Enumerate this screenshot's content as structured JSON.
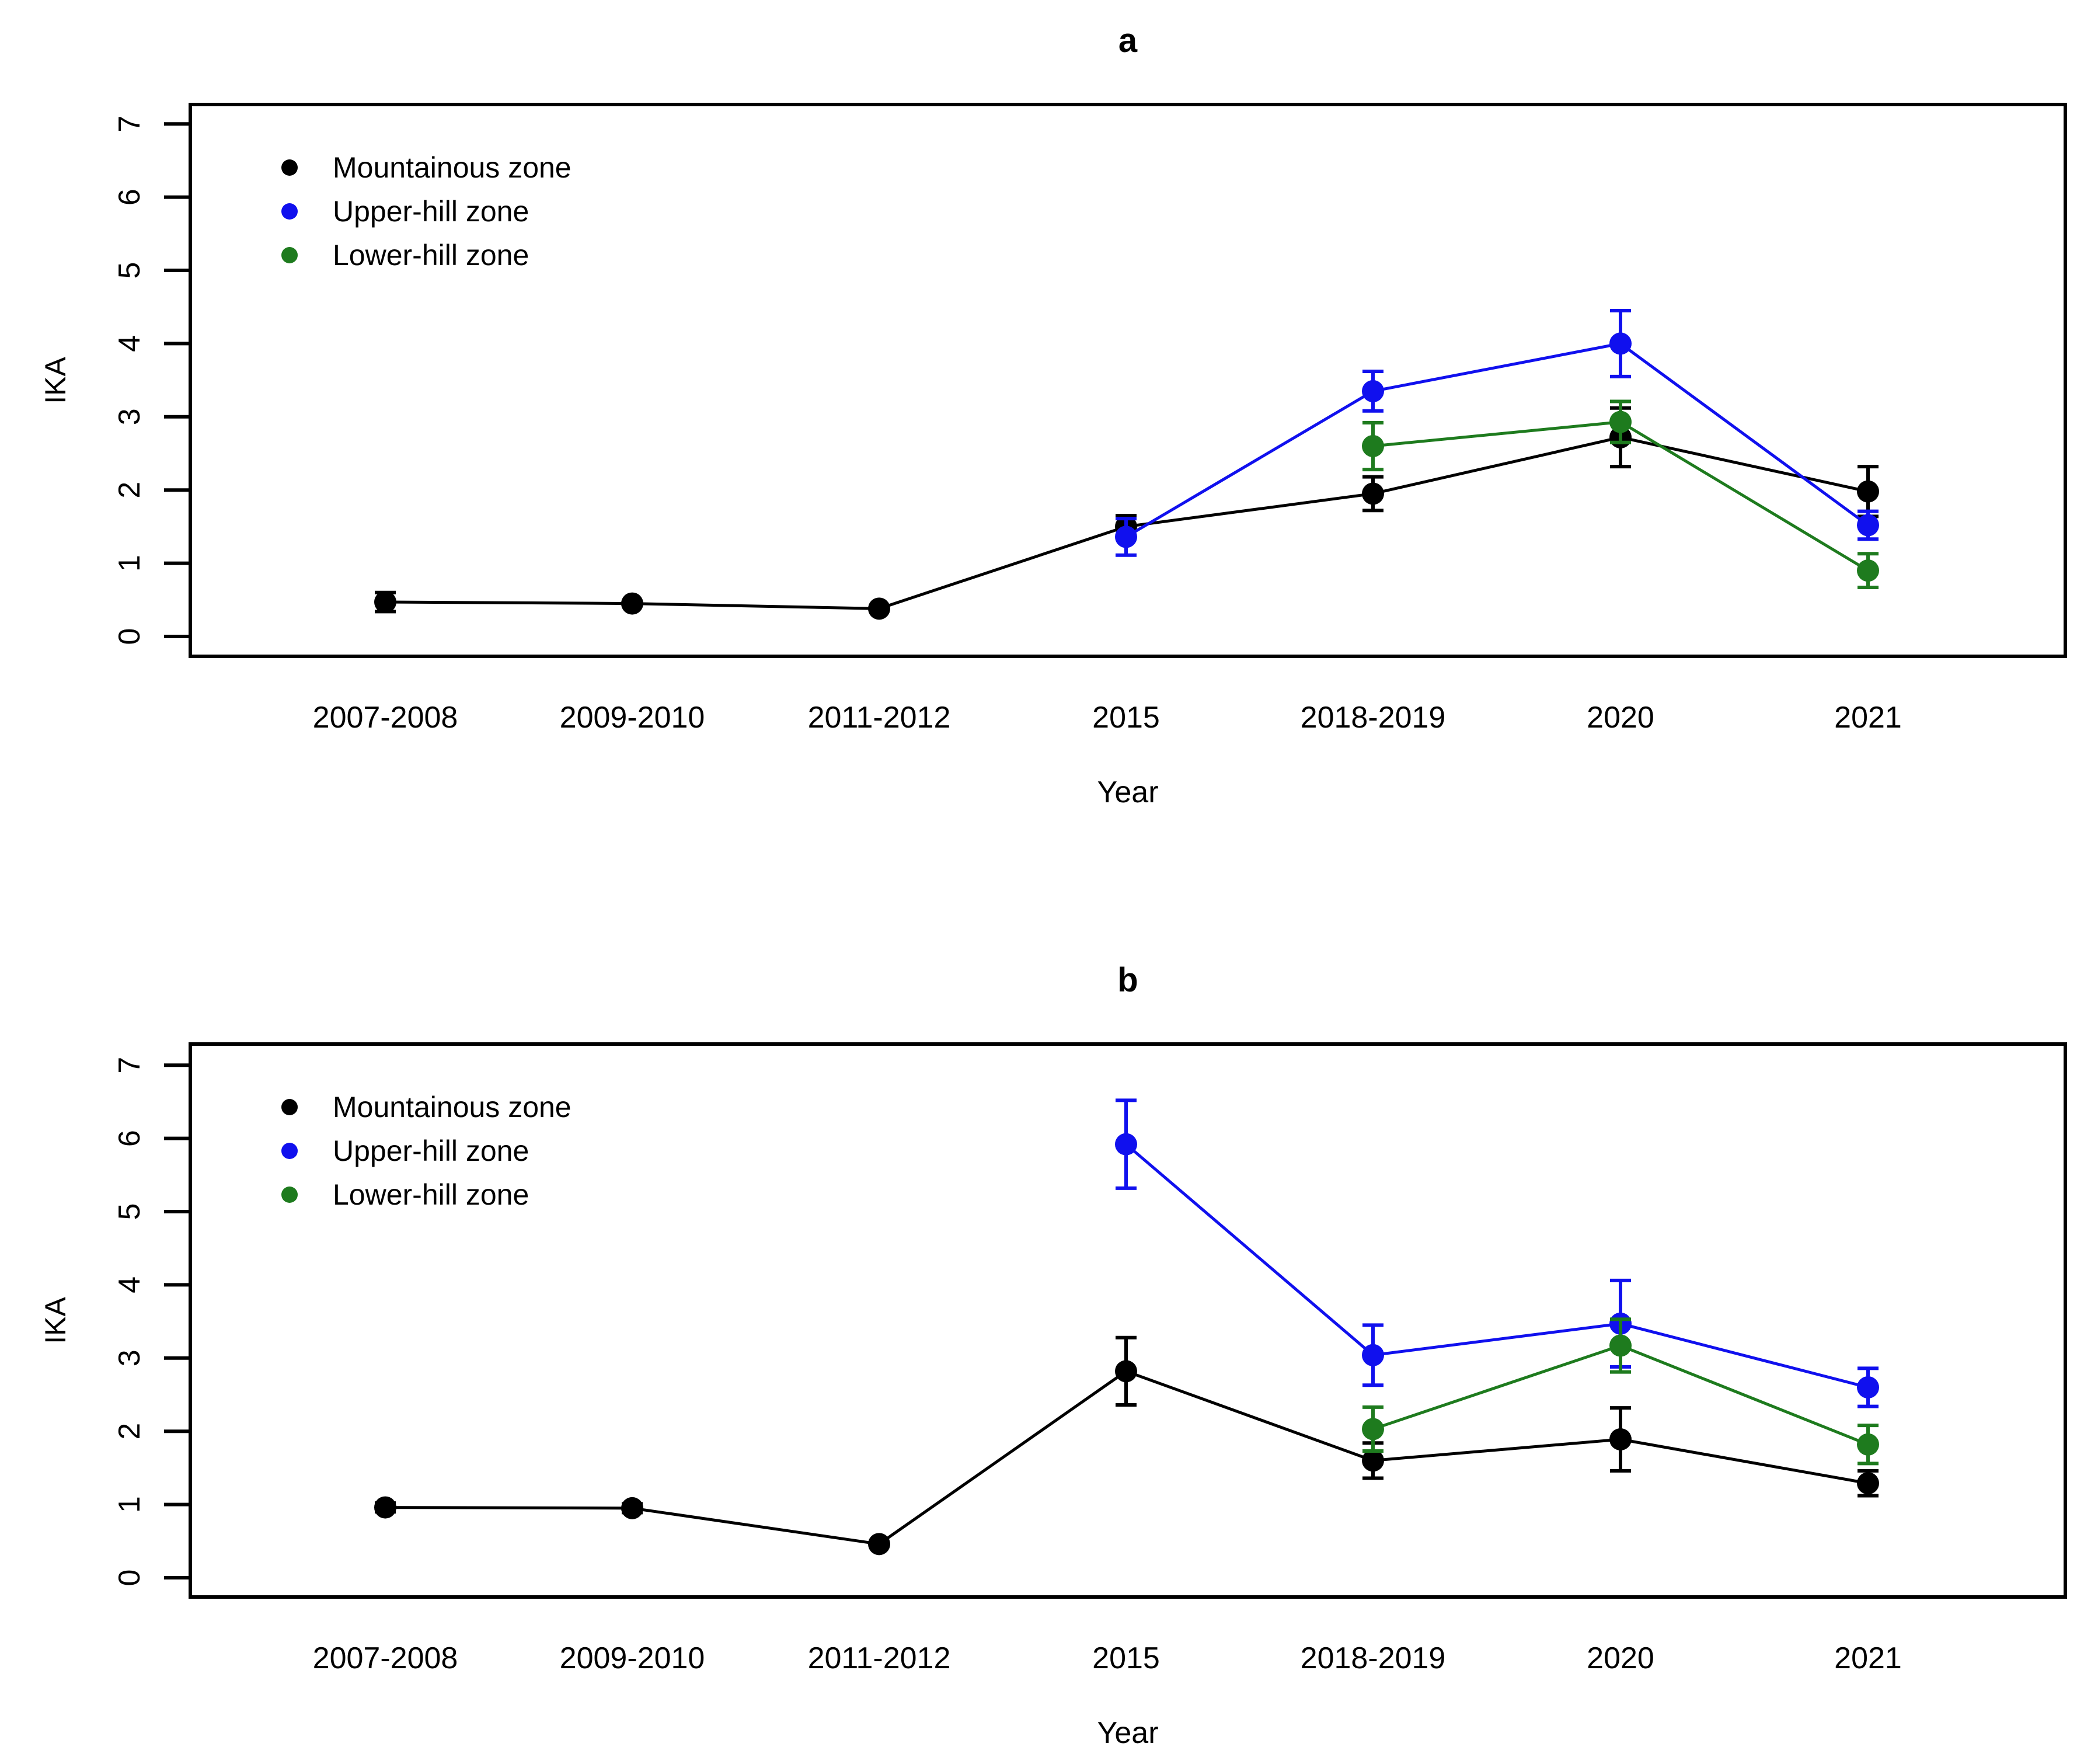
{
  "figure": {
    "background": "#ffffff",
    "accent_colors": {
      "black": "#000000",
      "blue": "#1010EE",
      "green": "#1E7B1E"
    }
  },
  "chart_data": [
    {
      "type": "line",
      "panel": "a",
      "title": "a",
      "xlabel": "Year",
      "ylabel": "IKA",
      "categories": [
        "2007-2008",
        "2009-2010",
        "2011-2012",
        "2015",
        "2018-2019",
        "2020",
        "2021"
      ],
      "yticks": [
        0,
        1,
        2,
        3,
        4,
        5,
        6,
        7
      ],
      "ylim": [
        -0.3,
        7.3
      ],
      "grid": false,
      "legend_position": "top-left-inside",
      "legend": [
        "Mountainous zone",
        "Upper-hill zone",
        "Lower-hill zone"
      ],
      "series": [
        {
          "name": "Mountainous zone",
          "color": "#000000",
          "values": [
            0.47,
            0.45,
            0.38,
            1.5,
            1.95,
            2.72,
            1.98
          ],
          "errors": [
            0.13,
            0,
            0,
            0.15,
            0.23,
            0.4,
            0.34
          ]
        },
        {
          "name": "Upper-hill zone",
          "color": "#1010EE",
          "values": [
            null,
            null,
            null,
            1.36,
            3.35,
            4.0,
            1.52
          ],
          "errors": [
            null,
            null,
            null,
            0.25,
            0.27,
            0.45,
            0.19
          ]
        },
        {
          "name": "Lower-hill zone",
          "color": "#1E7B1E",
          "values": [
            null,
            null,
            null,
            null,
            2.6,
            2.93,
            0.9
          ],
          "errors": [
            null,
            null,
            null,
            null,
            0.32,
            0.28,
            0.23
          ]
        }
      ]
    },
    {
      "type": "line",
      "panel": "b",
      "title": "b",
      "xlabel": "Year",
      "ylabel": "IKA",
      "categories": [
        "2007-2008",
        "2009-2010",
        "2011-2012",
        "2015",
        "2018-2019",
        "2020",
        "2021"
      ],
      "yticks": [
        0,
        1,
        2,
        3,
        4,
        5,
        6,
        7
      ],
      "ylim": [
        -0.3,
        7.3
      ],
      "grid": false,
      "legend_position": "top-left-inside",
      "legend": [
        "Mountainous zone",
        "Upper-hill zone",
        "Lower-hill zone"
      ],
      "series": [
        {
          "name": "Mountainous zone",
          "color": "#000000",
          "values": [
            0.96,
            0.95,
            0.46,
            2.82,
            1.6,
            1.89,
            1.29
          ],
          "errors": [
            0.06,
            0.06,
            0,
            0.46,
            0.24,
            0.43,
            0.17
          ]
        },
        {
          "name": "Upper-hill zone",
          "color": "#1010EE",
          "values": [
            null,
            null,
            null,
            5.92,
            3.04,
            3.47,
            2.6
          ],
          "errors": [
            null,
            null,
            null,
            0.6,
            0.41,
            0.59,
            0.26
          ]
        },
        {
          "name": "Lower-hill zone",
          "color": "#1E7B1E",
          "values": [
            null,
            null,
            null,
            null,
            2.03,
            3.17,
            1.82
          ],
          "errors": [
            null,
            null,
            null,
            null,
            0.3,
            0.36,
            0.26
          ]
        }
      ]
    }
  ]
}
